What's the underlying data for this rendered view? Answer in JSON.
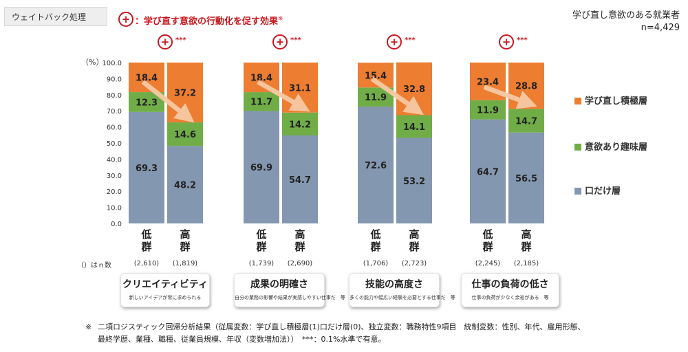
{
  "tag": "ウェイトバック処理",
  "heading": {
    "symbol": "+",
    "text": "：学び直す意欲の行動化を促す効果",
    "note": "※"
  },
  "sample": {
    "line1": "学び直し意欲のある就業者",
    "line2": "n=4,429"
  },
  "n_label": "（）はｎ数",
  "colors": {
    "bottom": "#8497b0",
    "middle": "#70ad47",
    "top": "#ed7d31",
    "accent": "#c8161d"
  },
  "chart_data": {
    "type": "bar",
    "stacked": true,
    "ylabel": "（%）",
    "ylim": [
      0,
      100
    ],
    "yticks": [
      "0.0",
      "10.0",
      "20.0",
      "30.0",
      "40.0",
      "50.0",
      "60.0",
      "70.0",
      "80.0",
      "90.0",
      "100.0"
    ],
    "legend": [
      "学び直し積極層",
      "意欲あり趣味層",
      "口だけ層"
    ],
    "legend_position": "right",
    "groups": [
      {
        "title": "クリエイティビティ",
        "subtitle": "新しいアイデアが常に求められる",
        "significance": "***",
        "bars": [
          {
            "label": "低群",
            "n": "(2,610)",
            "values": [
              69.3,
              12.3,
              18.4
            ],
            "labels": [
              "69.3",
              "12.3",
              "18.4"
            ]
          },
          {
            "label": "高群",
            "n": "(1,819)",
            "values": [
              48.2,
              14.6,
              37.2
            ],
            "labels": [
              "48.2",
              "14.6",
              "37.2"
            ]
          }
        ]
      },
      {
        "title": "成果の明確さ",
        "subtitle": "自分の業務の影響や結果が実感しやすい仕事だ　等",
        "significance": "***",
        "bars": [
          {
            "label": "低群",
            "n": "(1,739)",
            "values": [
              69.9,
              11.7,
              18.4
            ],
            "labels": [
              "69.9",
              "11.7",
              "18.4"
            ]
          },
          {
            "label": "高群",
            "n": "(2,690)",
            "values": [
              54.7,
              14.2,
              31.1
            ],
            "labels": [
              "54.7",
              "14.2",
              "31.1"
            ]
          }
        ]
      },
      {
        "title": "技能の高度さ",
        "subtitle": "多くの能力や幅広い経験を必要とする仕事だ　等",
        "significance": "***",
        "bars": [
          {
            "label": "低群",
            "n": "(1,706)",
            "values": [
              72.6,
              11.9,
              15.4
            ],
            "labels": [
              "72.6",
              "11.9",
              "15.4"
            ]
          },
          {
            "label": "高群",
            "n": "(2,723)",
            "values": [
              53.2,
              14.1,
              32.8
            ],
            "labels": [
              "53.2",
              "14.1",
              "32.8"
            ]
          }
        ]
      },
      {
        "title": "仕事の負荷の低さ",
        "subtitle": "仕事の負荷が少なく余裕がある　等",
        "significance": "***",
        "bars": [
          {
            "label": "低群",
            "n": "(2,245)",
            "values": [
              64.7,
              11.9,
              23.4
            ],
            "labels": [
              "64.7",
              "11.9",
              "23.4"
            ]
          },
          {
            "label": "高群",
            "n": "(2,185)",
            "values": [
              56.5,
              14.7,
              28.8
            ],
            "labels": [
              "56.5",
              "14.7",
              "28.8"
            ]
          }
        ]
      }
    ]
  },
  "footnote": {
    "mark": "※",
    "line1": "二項ロジスティック回帰分析結果（従属変数：学び直し積極層(1)口だけ層(0)、独立変数：職務特性9項目　統制変数：性別、年代、雇用形態、",
    "line2": "最終学歴、業種、職種、従業員規模、年収（変数増加法））　***：0.1%水準で有意。"
  }
}
